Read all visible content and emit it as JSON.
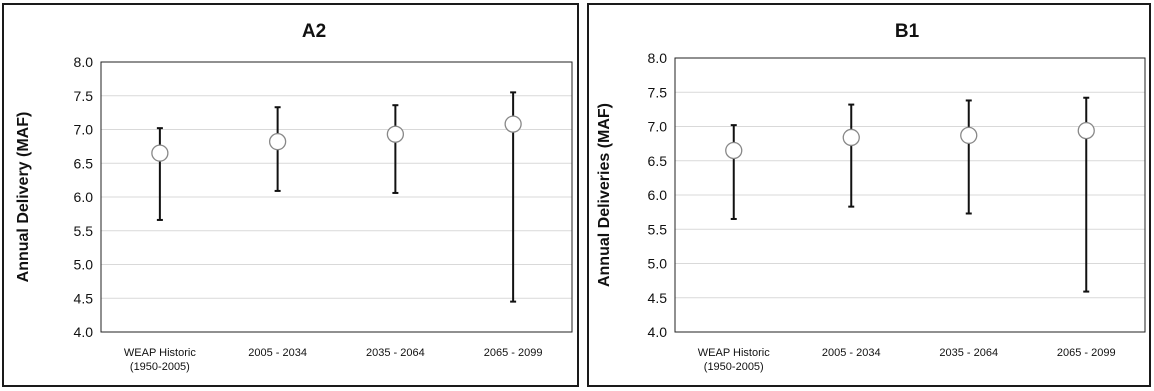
{
  "chart_data": [
    {
      "type": "scatter",
      "title": "A2",
      "ylabel": "Annual Delivery (MAF)",
      "xlabel": "",
      "ylim": [
        4.0,
        8.0
      ],
      "yticks": [
        "4.0",
        "4.5",
        "5.0",
        "5.5",
        "6.0",
        "6.5",
        "7.0",
        "7.5",
        "8.0"
      ],
      "grid": true,
      "categories": [
        [
          "WEAP Historic",
          "(1950-2005)"
        ],
        [
          "2005 - 2034"
        ],
        [
          "2035 - 2064"
        ],
        [
          "2065 - 2099"
        ]
      ],
      "values": [
        6.65,
        6.82,
        6.93,
        7.08
      ],
      "low": [
        5.66,
        6.09,
        6.06,
        4.45
      ],
      "high": [
        7.02,
        7.33,
        7.36,
        7.55
      ]
    },
    {
      "type": "scatter",
      "title": "B1",
      "ylabel": "Annual Deliveries  (MAF)",
      "xlabel": "",
      "ylim": [
        4.0,
        8.0
      ],
      "yticks": [
        "4.0",
        "4.5",
        "5.0",
        "5.5",
        "6.0",
        "6.5",
        "7.0",
        "7.5",
        "8.0"
      ],
      "grid": true,
      "categories": [
        [
          "WEAP Historic",
          "(1950-2005)"
        ],
        [
          "2005 - 2034"
        ],
        [
          "2035 - 2064"
        ],
        [
          "2065 - 2099"
        ]
      ],
      "values": [
        6.65,
        6.84,
        6.87,
        6.94
      ],
      "low": [
        5.65,
        5.83,
        5.73,
        4.59
      ],
      "high": [
        7.02,
        7.32,
        7.38,
        7.42
      ]
    }
  ]
}
